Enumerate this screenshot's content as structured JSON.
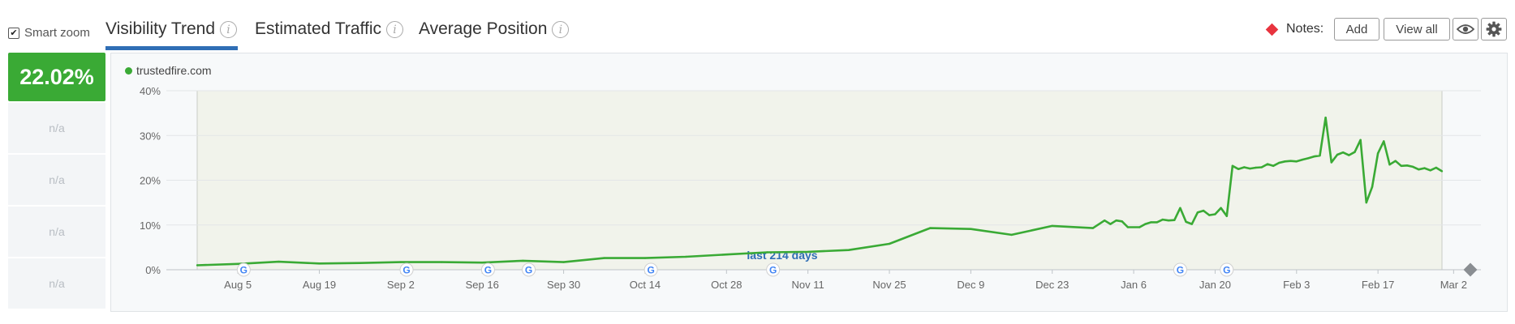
{
  "smart_zoom": {
    "label": "Smart zoom",
    "checked": true
  },
  "tabs": [
    {
      "label": "Visibility Trend",
      "active": true
    },
    {
      "label": "Estimated Traffic",
      "active": false
    },
    {
      "label": "Average Position",
      "active": false
    }
  ],
  "info_glyph": "i",
  "notes": {
    "label": "Notes:",
    "add_label": "Add",
    "view_all_label": "View all"
  },
  "icons": {
    "eye": "eye-icon",
    "settings": "gear-icon",
    "notes_marker": "red-diamond"
  },
  "summary": {
    "value": "22.02%",
    "rows": [
      "n/a",
      "n/a",
      "n/a",
      "n/a"
    ]
  },
  "colors": {
    "series": "#3aaa35",
    "tab_underline": "#2f6eb5",
    "note_marker": "#e8343f"
  },
  "chart_data": {
    "type": "line",
    "series": [
      {
        "name": "trustedfire.com",
        "points": [
          [
            "2024-07-29",
            1.0
          ],
          [
            "2024-08-05",
            1.3
          ],
          [
            "2024-08-12",
            1.8
          ],
          [
            "2024-08-19",
            1.4
          ],
          [
            "2024-08-26",
            1.5
          ],
          [
            "2024-09-02",
            1.7
          ],
          [
            "2024-09-09",
            1.7
          ],
          [
            "2024-09-16",
            1.6
          ],
          [
            "2024-09-23",
            2.0
          ],
          [
            "2024-09-30",
            1.7
          ],
          [
            "2024-10-07",
            2.6
          ],
          [
            "2024-10-14",
            2.6
          ],
          [
            "2024-10-21",
            2.9
          ],
          [
            "2024-10-28",
            3.4
          ],
          [
            "2024-11-04",
            3.9
          ],
          [
            "2024-11-11",
            4.0
          ],
          [
            "2024-11-18",
            4.4
          ],
          [
            "2024-11-25",
            5.8
          ],
          [
            "2024-12-02",
            9.3
          ],
          [
            "2024-12-09",
            9.1
          ],
          [
            "2024-12-16",
            7.8
          ],
          [
            "2024-12-23",
            9.8
          ],
          [
            "2024-12-30",
            9.3
          ],
          [
            "2025-01-01",
            11.0
          ],
          [
            "2025-01-02",
            10.2
          ],
          [
            "2025-01-03",
            11.0
          ],
          [
            "2025-01-04",
            10.8
          ],
          [
            "2025-01-05",
            9.5
          ],
          [
            "2025-01-07",
            9.5
          ],
          [
            "2025-01-08",
            10.2
          ],
          [
            "2025-01-09",
            10.6
          ],
          [
            "2025-01-10",
            10.6
          ],
          [
            "2025-01-11",
            11.2
          ],
          [
            "2025-01-12",
            11.0
          ],
          [
            "2025-01-13",
            11.1
          ],
          [
            "2025-01-14",
            13.8
          ],
          [
            "2025-01-15",
            10.7
          ],
          [
            "2025-01-16",
            10.2
          ],
          [
            "2025-01-17",
            12.8
          ],
          [
            "2025-01-18",
            13.2
          ],
          [
            "2025-01-19",
            12.2
          ],
          [
            "2025-01-20",
            12.4
          ],
          [
            "2025-01-21",
            13.8
          ],
          [
            "2025-01-22",
            12.0
          ],
          [
            "2025-01-23",
            23.2
          ],
          [
            "2025-01-24",
            22.5
          ],
          [
            "2025-01-25",
            22.9
          ],
          [
            "2025-01-26",
            22.6
          ],
          [
            "2025-01-27",
            22.8
          ],
          [
            "2025-01-28",
            22.9
          ],
          [
            "2025-01-29",
            23.6
          ],
          [
            "2025-01-30",
            23.2
          ],
          [
            "2025-01-31",
            23.9
          ],
          [
            "2025-02-01",
            24.2
          ],
          [
            "2025-02-02",
            24.3
          ],
          [
            "2025-02-03",
            24.2
          ],
          [
            "2025-02-04",
            24.6
          ],
          [
            "2025-02-05",
            24.9
          ],
          [
            "2025-02-06",
            25.3
          ],
          [
            "2025-02-07",
            25.5
          ],
          [
            "2025-02-08",
            34.0
          ],
          [
            "2025-02-09",
            24.0
          ],
          [
            "2025-02-10",
            25.7
          ],
          [
            "2025-02-11",
            26.2
          ],
          [
            "2025-02-12",
            25.6
          ],
          [
            "2025-02-13",
            26.3
          ],
          [
            "2025-02-14",
            29.0
          ],
          [
            "2025-02-15",
            15.0
          ],
          [
            "2025-02-16",
            18.5
          ],
          [
            "2025-02-17",
            26.0
          ],
          [
            "2025-02-18",
            28.7
          ],
          [
            "2025-02-19",
            23.5
          ],
          [
            "2025-02-20",
            24.3
          ],
          [
            "2025-02-21",
            23.2
          ],
          [
            "2025-02-22",
            23.3
          ],
          [
            "2025-02-23",
            23.0
          ],
          [
            "2025-02-24",
            22.4
          ],
          [
            "2025-02-25",
            22.7
          ],
          [
            "2025-02-26",
            22.2
          ],
          [
            "2025-02-27",
            22.8
          ],
          [
            "2025-02-28",
            22.0
          ]
        ]
      }
    ],
    "xlim": [
      "2024-07-29",
      "2025-02-28"
    ],
    "ylim": [
      0,
      40
    ],
    "y_ticks": [
      "0%",
      "10%",
      "20%",
      "30%",
      "40%"
    ],
    "x_ticks": [
      {
        "date": "2024-08-05",
        "label": "Aug 5"
      },
      {
        "date": "2024-08-19",
        "label": "Aug 19"
      },
      {
        "date": "2024-09-02",
        "label": "Sep 2"
      },
      {
        "date": "2024-09-16",
        "label": "Sep 16"
      },
      {
        "date": "2024-09-30",
        "label": "Sep 30"
      },
      {
        "date": "2024-10-14",
        "label": "Oct 14"
      },
      {
        "date": "2024-10-28",
        "label": "Oct 28"
      },
      {
        "date": "2024-11-11",
        "label": "Nov 11"
      },
      {
        "date": "2024-11-25",
        "label": "Nov 25"
      },
      {
        "date": "2024-12-09",
        "label": "Dec 9"
      },
      {
        "date": "2024-12-23",
        "label": "Dec 23"
      },
      {
        "date": "2025-01-06",
        "label": "Jan 6"
      },
      {
        "date": "2025-01-20",
        "label": "Jan 20"
      },
      {
        "date": "2025-02-03",
        "label": "Feb 3"
      },
      {
        "date": "2025-02-17",
        "label": "Feb 17"
      },
      {
        "date": "2025-03-02",
        "label": "Mar 2"
      }
    ],
    "google_update_markers": [
      "2024-08-06",
      "2024-09-03",
      "2024-09-17",
      "2024-09-24",
      "2024-10-15",
      "2024-11-05",
      "2025-01-14",
      "2025-01-22"
    ],
    "range_annotation": "last 214 days",
    "shaded_range": [
      "2024-07-29",
      "2025-02-28"
    ],
    "grid": "horizontal",
    "legend_position": "top-left"
  }
}
